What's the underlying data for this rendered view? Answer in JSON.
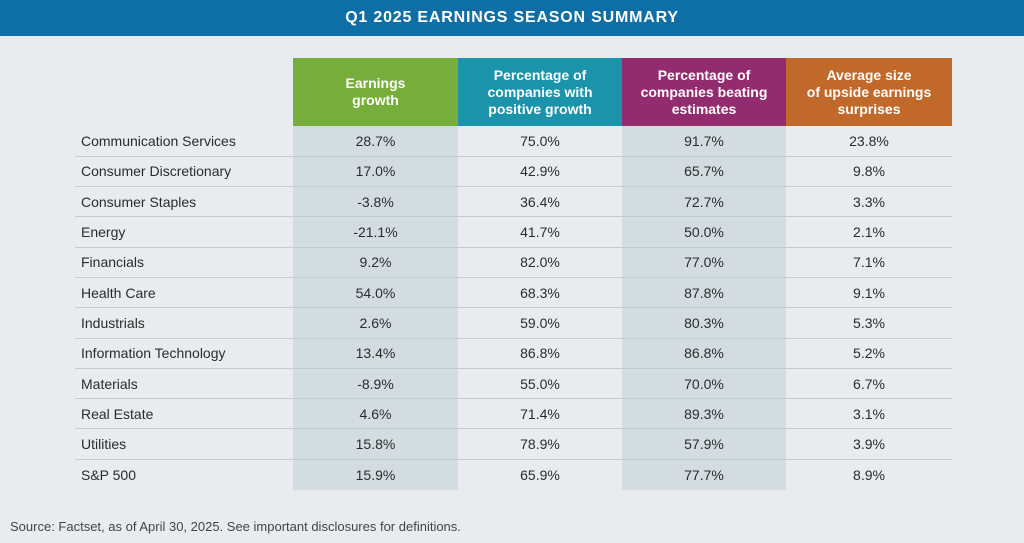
{
  "title": "Q1 2025 EARNINGS SEASON SUMMARY",
  "colors": {
    "title_bar": "#0e6ea6",
    "earnings_growth": "#76ad3b",
    "positive_growth": "#1a93ab",
    "beating_estimates": "#922c6e",
    "upside_surprises": "#c1692a",
    "shaded_column": "#d3dde1",
    "background": "#e8ecee"
  },
  "chart_data": {
    "type": "table",
    "title": "Q1 2025 EARNINGS SEASON SUMMARY",
    "columns": [
      "Earnings growth",
      "Percentage of companies with positive growth",
      "Percentage of companies beating estimates",
      "Average size of upside earnings surprises"
    ],
    "column_lines": [
      [
        "Earnings",
        "growth"
      ],
      [
        "Percentage of",
        "companies with",
        "positive growth"
      ],
      [
        "Percentage of",
        "companies beating",
        "estimates"
      ],
      [
        "Average size",
        "of upside earnings",
        "surprises"
      ]
    ],
    "rows": [
      {
        "sector": "Communication Services",
        "values": [
          "28.7%",
          "75.0%",
          "91.7%",
          "23.8%"
        ]
      },
      {
        "sector": "Consumer Discretionary",
        "values": [
          "17.0%",
          "42.9%",
          "65.7%",
          "9.8%"
        ]
      },
      {
        "sector": "Consumer Staples",
        "values": [
          "-3.8%",
          "36.4%",
          "72.7%",
          "3.3%"
        ]
      },
      {
        "sector": "Energy",
        "values": [
          "-21.1%",
          "41.7%",
          "50.0%",
          "2.1%"
        ]
      },
      {
        "sector": "Financials",
        "values": [
          "9.2%",
          "82.0%",
          "77.0%",
          "7.1%"
        ]
      },
      {
        "sector": "Health Care",
        "values": [
          "54.0%",
          "68.3%",
          "87.8%",
          "9.1%"
        ]
      },
      {
        "sector": "Industrials",
        "values": [
          "2.6%",
          "59.0%",
          "80.3%",
          "5.3%"
        ]
      },
      {
        "sector": "Information Technology",
        "values": [
          "13.4%",
          "86.8%",
          "86.8%",
          "5.2%"
        ]
      },
      {
        "sector": "Materials",
        "values": [
          "-8.9%",
          "55.0%",
          "70.0%",
          "6.7%"
        ]
      },
      {
        "sector": "Real Estate",
        "values": [
          "4.6%",
          "71.4%",
          "89.3%",
          "3.1%"
        ]
      },
      {
        "sector": "Utilities",
        "values": [
          "15.8%",
          "78.9%",
          "57.9%",
          "3.9%"
        ]
      },
      {
        "sector": "S&P 500",
        "values": [
          "15.9%",
          "65.9%",
          "77.7%",
          "8.9%"
        ]
      }
    ]
  },
  "source": "Source: Factset, as of April 30, 2025.  See important disclosures for definitions."
}
